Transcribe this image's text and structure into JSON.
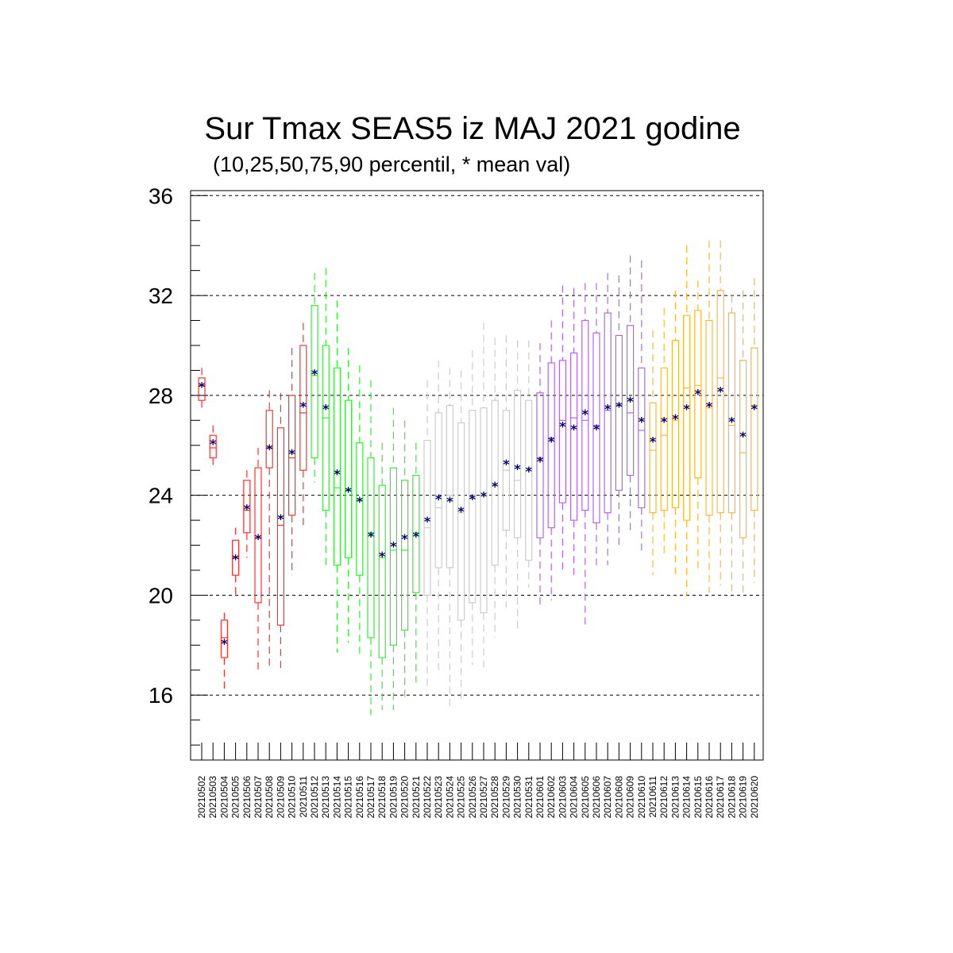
{
  "chart_data": {
    "type": "box",
    "title": "Sur Tmax SEAS5 iz MAJ 2021 godine",
    "subtitle": "(10,25,50,75,90 percentil, * mean val)",
    "ylim": [
      13.4,
      36.2
    ],
    "yticks": [
      16,
      20,
      24,
      28,
      32,
      36
    ],
    "grid": "dashed horizontal at major ticks",
    "categories": [
      "20210502",
      "20210503",
      "20210504",
      "20210505",
      "20210506",
      "20210507",
      "20210508",
      "20210509",
      "20210510",
      "20210511",
      "20210512",
      "20210513",
      "20210514",
      "20210515",
      "20210516",
      "20210517",
      "20210518",
      "20210519",
      "20210520",
      "20210521",
      "20210522",
      "20210523",
      "20210524",
      "20210525",
      "20210526",
      "20210527",
      "20210528",
      "20210529",
      "20210530",
      "20210531",
      "20210601",
      "20210602",
      "20210603",
      "20210604",
      "20210605",
      "20210606",
      "20210607",
      "20210608",
      "20210609",
      "20210610",
      "20210611",
      "20210612",
      "20210613",
      "20210614",
      "20210615",
      "20210616",
      "20210617",
      "20210618",
      "20210619",
      "20210620"
    ],
    "colors": {
      "red": "#ff3030",
      "green": "#33ee33",
      "gray": "#cccccc",
      "purple": "#b266ee",
      "orange": "#ffb733",
      "mean": "#000066"
    },
    "groups": [
      "red",
      "red",
      "red",
      "red",
      "red",
      "red",
      "red",
      "red",
      "red",
      "red",
      "green",
      "green",
      "green",
      "green",
      "green",
      "green",
      "green",
      "green",
      "green",
      "green",
      "gray",
      "gray",
      "gray",
      "gray",
      "gray",
      "gray",
      "gray",
      "gray",
      "gray",
      "gray",
      "purple",
      "purple",
      "purple",
      "purple",
      "purple",
      "purple",
      "purple",
      "purple",
      "purple",
      "purple",
      "orange",
      "orange",
      "orange",
      "orange",
      "orange",
      "orange",
      "orange",
      "orange",
      "orange",
      "orange"
    ],
    "p10": [
      27.4,
      25.2,
      16.2,
      19.9,
      21.5,
      17.0,
      17.0,
      17.0,
      20.8,
      22.8,
      24.5,
      21.2,
      17.7,
      18.1,
      17.5,
      15.2,
      15.4,
      15.4,
      15.8,
      16.5,
      16.2,
      16.8,
      15.4,
      15.8,
      17.2,
      17.1,
      18.3,
      19.5,
      18.6,
      20.3,
      19.5,
      19.8,
      21.0,
      20.8,
      18.8,
      21.2,
      21.2,
      22.0,
      22.6,
      21.6,
      20.8,
      21.6,
      20.8,
      20.0,
      21.0,
      20.1,
      20.4,
      20.1,
      20.0,
      20.5
    ],
    "p25": [
      27.8,
      25.5,
      17.5,
      20.8,
      22.5,
      19.7,
      25.1,
      18.8,
      23.2,
      25.0,
      25.5,
      23.4,
      21.2,
      21.5,
      20.8,
      18.3,
      17.5,
      18.0,
      18.6,
      20.1,
      20.0,
      21.1,
      21.1,
      19.0,
      19.7,
      19.3,
      21.2,
      22.6,
      22.3,
      21.4,
      22.3,
      22.7,
      23.7,
      23.0,
      23.4,
      22.9,
      23.3,
      24.2,
      24.8,
      23.5,
      23.3,
      23.4,
      23.5,
      23.0,
      24.7,
      23.2,
      23.3,
      23.3,
      22.3,
      23.4
    ],
    "p50": [
      28.4,
      25.9,
      18.3,
      21.5,
      23.4,
      22.3,
      25.9,
      22.8,
      25.5,
      27.3,
      28.8,
      27.1,
      24.3,
      24.2,
      23.8,
      22.5,
      21.5,
      21.8,
      21.8,
      22.5,
      22.7,
      23.5,
      24.0,
      23.3,
      23.9,
      24.0,
      24.4,
      25.0,
      24.6,
      25.1,
      25.5,
      26.3,
      27.0,
      27.1,
      27.0,
      26.8,
      27.4,
      27.6,
      27.3,
      26.6,
      25.8,
      26.4,
      27.0,
      28.3,
      28.4,
      27.5,
      28.7,
      26.8,
      25.7,
      27.6
    ],
    "p75": [
      28.7,
      26.4,
      19.0,
      22.2,
      24.6,
      25.1,
      27.4,
      26.7,
      28.0,
      30.0,
      31.6,
      30.0,
      29.1,
      27.8,
      26.1,
      25.5,
      24.4,
      25.1,
      24.6,
      24.8,
      26.2,
      27.3,
      27.6,
      26.9,
      27.4,
      27.5,
      27.8,
      27.4,
      28.2,
      27.8,
      28.1,
      29.3,
      29.4,
      29.7,
      31.0,
      30.5,
      31.3,
      30.4,
      30.8,
      29.1,
      27.7,
      29.1,
      30.2,
      31.2,
      31.4,
      31.0,
      32.2,
      31.3,
      29.4,
      29.9
    ],
    "p90": [
      29.1,
      26.8,
      19.3,
      22.7,
      25.0,
      25.9,
      28.2,
      28.1,
      29.9,
      30.9,
      32.9,
      33.1,
      31.8,
      29.9,
      29.2,
      28.6,
      26.1,
      27.5,
      27.0,
      26.1,
      28.6,
      29.4,
      29.1,
      29.0,
      29.8,
      30.9,
      30.3,
      30.4,
      30.2,
      30.2,
      30.1,
      31.0,
      32.4,
      32.3,
      32.5,
      32.5,
      32.9,
      32.8,
      33.6,
      33.4,
      30.6,
      31.5,
      32.2,
      34.0,
      32.6,
      34.2,
      34.2,
      32.0,
      32.2,
      32.7
    ],
    "mean": [
      28.4,
      26.1,
      18.1,
      21.5,
      23.5,
      22.3,
      25.9,
      23.1,
      25.7,
      27.6,
      28.9,
      27.5,
      24.9,
      24.2,
      23.8,
      22.4,
      21.6,
      22.0,
      22.3,
      22.4,
      23.0,
      23.9,
      23.8,
      23.4,
      23.9,
      24.0,
      24.4,
      25.3,
      25.1,
      25.0,
      25.4,
      26.2,
      26.8,
      26.7,
      27.3,
      26.7,
      27.5,
      27.6,
      27.8,
      27.0,
      26.2,
      27.0,
      27.1,
      27.5,
      28.1,
      27.6,
      28.2,
      27.0,
      26.4,
      27.5
    ]
  }
}
